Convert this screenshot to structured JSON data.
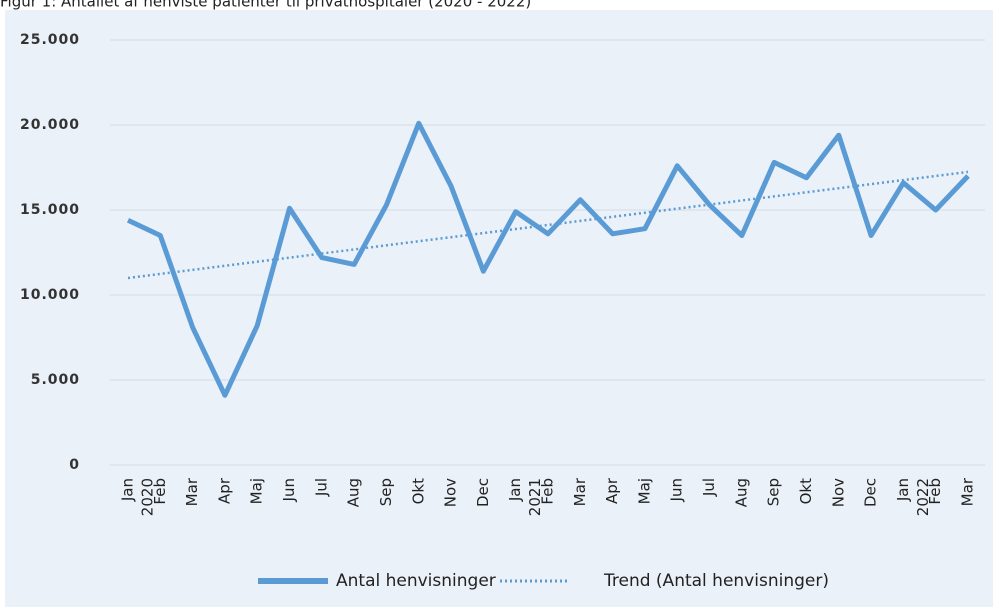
{
  "chart_data": {
    "type": "line",
    "title": "Figur 1: Antallet af henviste patienter til privathospitaler (2020 - 2022)",
    "categories": [
      "Jan",
      "Feb",
      "Mar",
      "Apr",
      "Maj",
      "Jun",
      "Jul",
      "Aug",
      "Sep",
      "Okt",
      "Nov",
      "Dec",
      "Jan",
      "Feb",
      "Mar",
      "Apr",
      "Maj",
      "Jun",
      "Jul",
      "Aug",
      "Sep",
      "Okt",
      "Nov",
      "Dec",
      "Jan",
      "Feb",
      "Mar"
    ],
    "years": [
      "2020",
      "2021",
      "2022"
    ],
    "series": [
      {
        "name": "Antal henvisninger",
        "color": "#5b9bd5",
        "style": "solid",
        "values": [
          14400,
          13500,
          8100,
          4100,
          8200,
          15100,
          12200,
          11800,
          15300,
          20100,
          16400,
          11400,
          14900,
          13600,
          15600,
          13600,
          13900,
          17600,
          15300,
          13500,
          17800,
          16900,
          19400,
          13500,
          16600,
          15000,
          17000
        ]
      },
      {
        "name": "Trend (Antal henvisninger)",
        "color": "#5b9bd5",
        "style": "dotted",
        "values": [
          11000,
          11240,
          11480,
          11720,
          11960,
          12200,
          12440,
          12680,
          12920,
          13160,
          13400,
          13640,
          13880,
          14120,
          14360,
          14600,
          14840,
          15080,
          15320,
          15560,
          15800,
          16040,
          16280,
          16520,
          16760,
          17000,
          17240
        ]
      }
    ],
    "ylim": [
      0,
      25000
    ],
    "yticks": [
      0,
      {
        "value": 5000,
        "label": "5.000"
      },
      {
        "value": 10000,
        "label": "10.000"
      },
      {
        "value": 15000,
        "label": "15.000"
      },
      {
        "value": 20000,
        "label": "20.000"
      },
      {
        "value": 25000,
        "label": "25.000"
      }
    ],
    "grid": true
  }
}
